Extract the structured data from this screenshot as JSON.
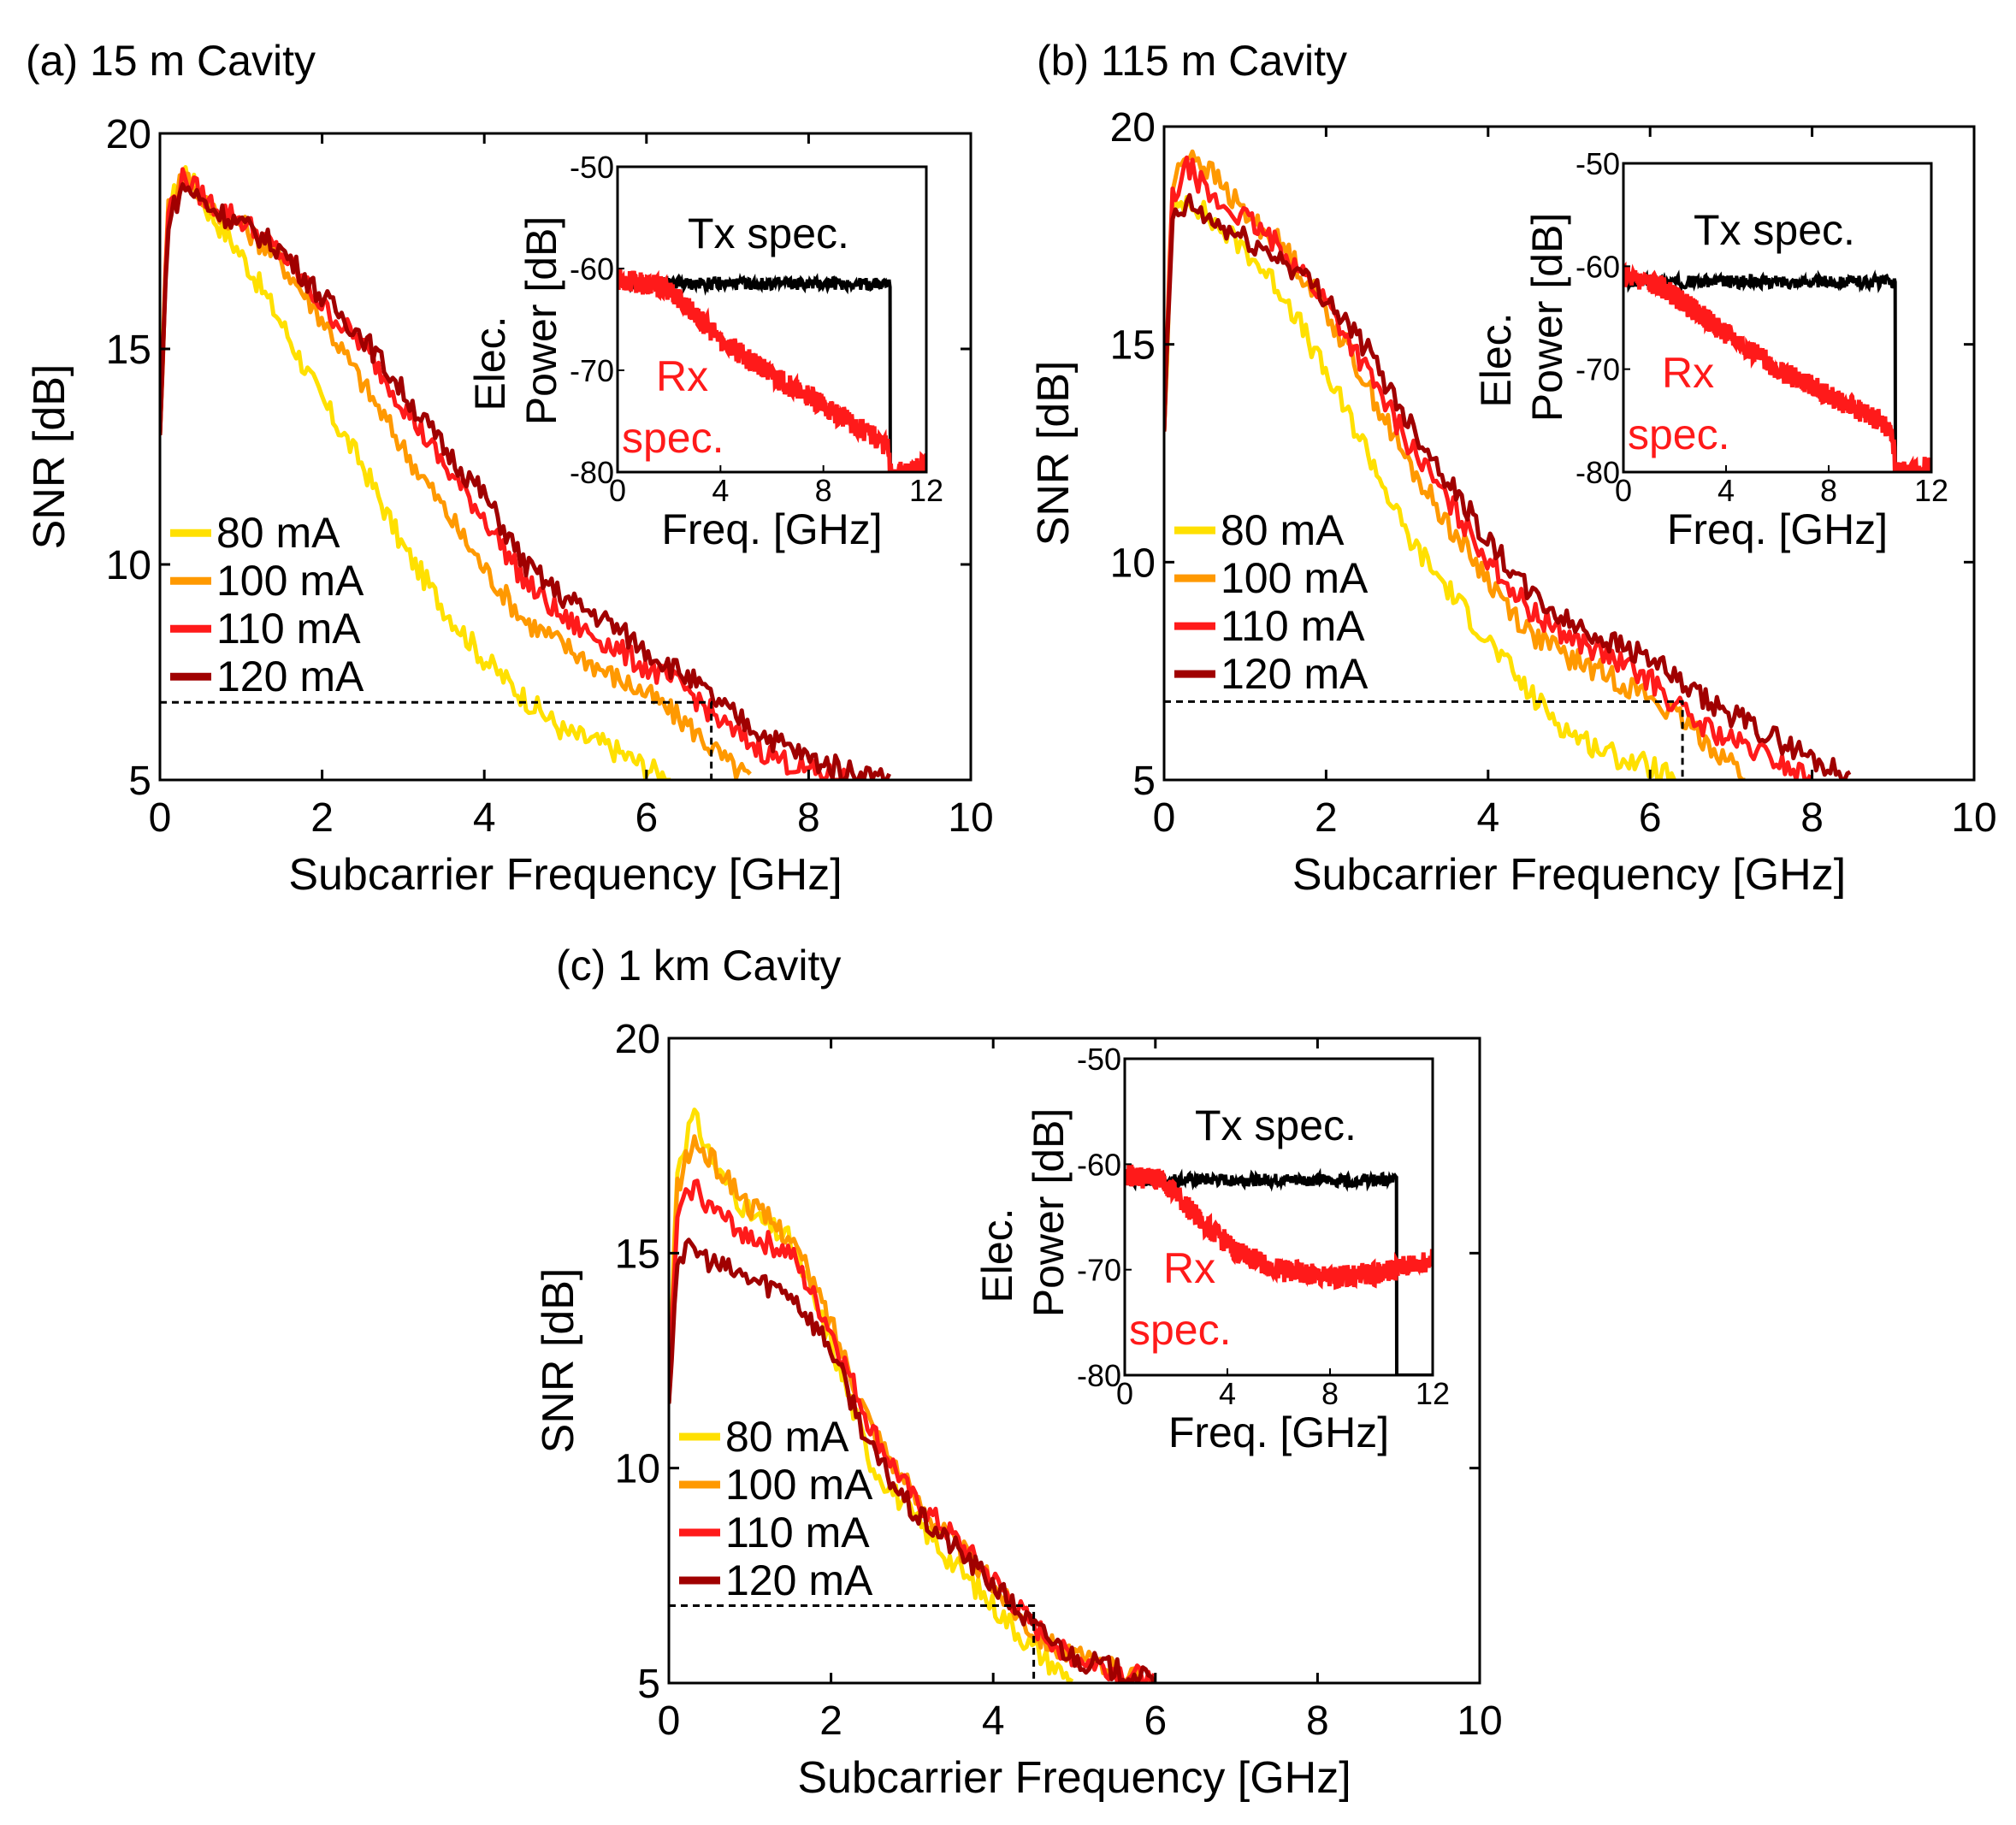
{
  "figure": {
    "x_axis_label": "Subcarrier Frequency [GHz]",
    "y_axis_label": "SNR [dB]",
    "inset_x_label": "Freq. [GHz]",
    "inset_y_label_line1": "Elec.",
    "inset_y_label_line2": "Power [dB]",
    "inset_tx_label": "Tx spec.",
    "inset_rx_label_line1": "Rx",
    "inset_rx_label_line2": "spec."
  },
  "colors": {
    "80 mA": "#ffe000",
    "100 mA": "#ff9900",
    "110 mA": "#ff1a1a",
    "120 mA": "#a00000",
    "tx": "#000000",
    "rx": "#ff1a1a",
    "threshold": "#000000"
  },
  "chart_data": [
    {
      "type": "line",
      "id": "a",
      "title": "(a) 15 m Cavity",
      "xlabel": "Subcarrier Frequency [GHz]",
      "ylabel": "SNR [dB]",
      "xlim": [
        0,
        10
      ],
      "ylim": [
        5,
        20
      ],
      "x_ticks": [
        0,
        2,
        4,
        6,
        8,
        10
      ],
      "y_ticks": [
        5,
        10,
        15,
        20
      ],
      "legend": "left",
      "threshold": {
        "y": 6.8,
        "x_end": 6.8
      },
      "series": [
        {
          "name": "80 mA",
          "x": [
            0,
            0.1,
            0.3,
            0.6,
            1.0,
            1.5,
            2.0,
            2.5,
            3.0,
            3.5,
            4.0,
            4.5,
            5.0,
            5.5,
            6.0,
            6.3
          ],
          "y": [
            13,
            18.2,
            19.2,
            18.2,
            17.2,
            15.6,
            13.8,
            12.3,
            10.4,
            9.0,
            7.8,
            6.9,
            6.1,
            5.8,
            5.3,
            5.0
          ]
        },
        {
          "name": "100 mA",
          "x": [
            0,
            0.1,
            0.3,
            0.6,
            1.0,
            1.5,
            2.0,
            2.5,
            3.0,
            3.5,
            4.0,
            4.5,
            5.0,
            5.5,
            6.0,
            6.5,
            7.0,
            7.3
          ],
          "y": [
            13,
            18.3,
            19.1,
            18.3,
            17.9,
            17.0,
            15.7,
            14.2,
            12.7,
            11.3,
            9.9,
            8.7,
            8.1,
            7.5,
            7.0,
            6.3,
            5.4,
            5.0
          ]
        },
        {
          "name": "110 mA",
          "x": [
            0,
            0.1,
            0.3,
            0.6,
            1.0,
            1.5,
            2.0,
            2.5,
            3.0,
            3.5,
            4.0,
            4.5,
            5.0,
            5.5,
            6.0,
            6.5,
            7.0,
            7.5,
            8.0,
            8.5
          ],
          "y": [
            13,
            18.2,
            19.0,
            18.4,
            18.0,
            17.2,
            16.0,
            15.1,
            13.7,
            12.3,
            11.1,
            9.6,
            8.7,
            8.2,
            7.6,
            7.1,
            6.2,
            5.6,
            5.2,
            5.0
          ]
        },
        {
          "name": "120 mA",
          "x": [
            0,
            0.1,
            0.3,
            0.6,
            1.0,
            1.5,
            2.0,
            2.5,
            3.0,
            3.5,
            4.0,
            4.5,
            5.0,
            5.5,
            6.0,
            6.5,
            7.0,
            7.5,
            8.0,
            8.5,
            9.0
          ],
          "y": [
            13,
            18.0,
            18.8,
            18.3,
            17.9,
            17.3,
            16.2,
            15.3,
            14.0,
            12.7,
            11.6,
            10.0,
            9.2,
            8.7,
            8.0,
            7.4,
            6.6,
            6.0,
            5.5,
            5.2,
            5.0
          ]
        }
      ],
      "inset": {
        "xlabel": "Freq. [GHz]",
        "ylabel": "Elec. Power [dB]",
        "xlim": [
          0,
          12
        ],
        "ylim": [
          -80,
          -50
        ],
        "x_ticks": [
          0,
          4,
          8,
          12
        ],
        "y_ticks": [
          -50,
          -60,
          -70,
          -80
        ],
        "tx": {
          "x": [
            0,
            10.6,
            10.6,
            12
          ],
          "y": [
            -61.5,
            -61.5,
            -80,
            -80
          ]
        },
        "rx": {
          "x": [
            0,
            2,
            4,
            6,
            8,
            10,
            10.5,
            10.6,
            11.5,
            12
          ],
          "y": [
            -61,
            -62,
            -67,
            -70.5,
            -73.5,
            -76.5,
            -77.5,
            -80,
            -80,
            -79
          ]
        }
      }
    },
    {
      "type": "line",
      "id": "b",
      "title": "(b) 115 m Cavity",
      "xlabel": "Subcarrier Frequency [GHz]",
      "ylabel": "SNR [dB]",
      "xlim": [
        0,
        10
      ],
      "ylim": [
        5,
        20
      ],
      "x_ticks": [
        0,
        2,
        4,
        6,
        8,
        10
      ],
      "y_ticks": [
        5,
        10,
        15,
        20
      ],
      "legend": "left",
      "threshold": {
        "y": 6.8,
        "x_end": 6.4
      },
      "series": [
        {
          "name": "80 mA",
          "x": [
            0,
            0.1,
            0.3,
            0.6,
            1.0,
            1.5,
            2.0,
            2.5,
            3.0,
            3.5,
            4.0,
            4.5,
            5.0,
            5.5,
            6.0,
            6.3
          ],
          "y": [
            13,
            18.0,
            18.4,
            17.8,
            17.2,
            16.1,
            14.3,
            12.6,
            10.6,
            9.4,
            8.2,
            7.0,
            6.1,
            5.6,
            5.3,
            5.0
          ]
        },
        {
          "name": "100 mA",
          "x": [
            0,
            0.1,
            0.3,
            0.6,
            1.0,
            1.5,
            2.0,
            2.5,
            3.0,
            3.5,
            4.0,
            4.5,
            5.0,
            5.5,
            6.0,
            6.5,
            7.0,
            7.2
          ],
          "y": [
            13,
            18.6,
            19.5,
            18.9,
            18.0,
            17.2,
            15.8,
            14.1,
            12.3,
            10.9,
            9.6,
            8.4,
            7.8,
            7.4,
            6.9,
            6.2,
            5.4,
            5.0
          ]
        },
        {
          "name": "110 mA",
          "x": [
            0,
            0.1,
            0.3,
            0.6,
            1.0,
            1.5,
            2.0,
            2.5,
            3.0,
            3.5,
            4.0,
            4.5,
            5.0,
            5.5,
            6.0,
            6.5,
            7.0,
            7.5,
            8.0
          ],
          "y": [
            13,
            18.3,
            19.1,
            18.3,
            17.9,
            17.1,
            16.0,
            14.4,
            12.8,
            11.4,
            10.1,
            8.9,
            8.3,
            7.8,
            7.3,
            6.4,
            5.9,
            5.5,
            5.0
          ]
        },
        {
          "name": "120 mA",
          "x": [
            0,
            0.1,
            0.3,
            0.6,
            1.0,
            1.5,
            2.0,
            2.5,
            3.0,
            3.5,
            4.0,
            4.5,
            5.0,
            5.5,
            6.0,
            6.5,
            7.0,
            7.5,
            8.0,
            8.5
          ],
          "y": [
            13,
            17.8,
            18.2,
            17.8,
            17.4,
            16.9,
            16.1,
            14.9,
            13.3,
            11.9,
            10.5,
            9.3,
            8.6,
            8.2,
            7.8,
            7.0,
            6.5,
            6.0,
            5.5,
            5.0
          ]
        }
      ],
      "inset": {
        "xlabel": "Freq. [GHz]",
        "ylabel": "Elec. Power [dB]",
        "xlim": [
          0,
          12
        ],
        "ylim": [
          -80,
          -50
        ],
        "x_ticks": [
          0,
          4,
          8,
          12
        ],
        "y_ticks": [
          -50,
          -60,
          -70,
          -80
        ],
        "tx": {
          "x": [
            0,
            10.6,
            10.6,
            12
          ],
          "y": [
            -61.5,
            -61.5,
            -80,
            -80
          ]
        },
        "rx": {
          "x": [
            0,
            1.5,
            4,
            6,
            8,
            10,
            10.5,
            10.6,
            11.5,
            12
          ],
          "y": [
            -61,
            -62,
            -66.5,
            -70,
            -72.5,
            -75,
            -76.5,
            -80,
            -80,
            -79
          ]
        }
      }
    },
    {
      "type": "line",
      "id": "c",
      "title": "(c) 1 km Cavity",
      "xlabel": "Subcarrier Frequency [GHz]",
      "ylabel": "SNR [dB]",
      "xlim": [
        0,
        10
      ],
      "ylim": [
        5,
        20
      ],
      "x_ticks": [
        0,
        2,
        4,
        6,
        8,
        10
      ],
      "y_ticks": [
        5,
        10,
        15,
        20
      ],
      "legend": "left",
      "threshold": {
        "y": 6.8,
        "x_end": 4.5
      },
      "series": [
        {
          "name": "80 mA",
          "x": [
            0,
            0.1,
            0.3,
            0.6,
            1.0,
            1.5,
            2.0,
            2.5,
            3.0,
            3.5,
            4.0,
            4.5,
            5.0
          ],
          "y": [
            11.5,
            17.0,
            18.2,
            16.9,
            15.9,
            15.3,
            12.9,
            10.1,
            8.9,
            7.8,
            6.8,
            5.8,
            5.0
          ]
        },
        {
          "name": "100 mA",
          "x": [
            0,
            0.1,
            0.3,
            0.6,
            1.0,
            1.5,
            2.0,
            2.5,
            3.0,
            3.5,
            4.0,
            4.5,
            5.0,
            5.5,
            6.0
          ],
          "y": [
            11.5,
            16.5,
            17.6,
            17.0,
            16.1,
            15.4,
            13.4,
            11.0,
            9.4,
            8.3,
            7.3,
            6.2,
            5.6,
            5.3,
            5.0
          ]
        },
        {
          "name": "110 mA",
          "x": [
            0,
            0.1,
            0.3,
            0.6,
            1.0,
            1.5,
            2.0,
            2.5,
            3.0,
            3.5,
            4.0,
            4.5,
            5.0,
            5.5,
            6.0
          ],
          "y": [
            11.5,
            15.8,
            16.6,
            15.9,
            15.4,
            15.0,
            13.2,
            10.9,
            9.3,
            8.4,
            7.4,
            6.3,
            5.6,
            5.3,
            5.0
          ]
        },
        {
          "name": "120 mA",
          "x": [
            0,
            0.1,
            0.3,
            0.6,
            1.0,
            1.5,
            2.0,
            2.5,
            3.0,
            3.5,
            4.0,
            4.5,
            5.0,
            5.5,
            6.0
          ],
          "y": [
            11.5,
            14.9,
            15.1,
            14.7,
            14.4,
            14.1,
            12.8,
            10.4,
            9.0,
            8.2,
            7.3,
            6.3,
            5.6,
            5.3,
            5.0
          ]
        }
      ],
      "inset": {
        "xlabel": "Freq. [GHz]",
        "ylabel": "Elec. Power [dB]",
        "xlim": [
          0,
          12
        ],
        "ylim": [
          -80,
          -50
        ],
        "x_ticks": [
          0,
          4,
          8,
          12
        ],
        "y_ticks": [
          -50,
          -60,
          -70,
          -80
        ],
        "tx": {
          "x": [
            0,
            10.6,
            10.6,
            12
          ],
          "y": [
            -61.5,
            -61.5,
            -80,
            -80
          ]
        },
        "rx": {
          "x": [
            0,
            1.5,
            3,
            4.5,
            6,
            8,
            10,
            12
          ],
          "y": [
            -61,
            -61.5,
            -65.5,
            -68.5,
            -70,
            -70.8,
            -70.3,
            -69
          ]
        }
      }
    }
  ]
}
